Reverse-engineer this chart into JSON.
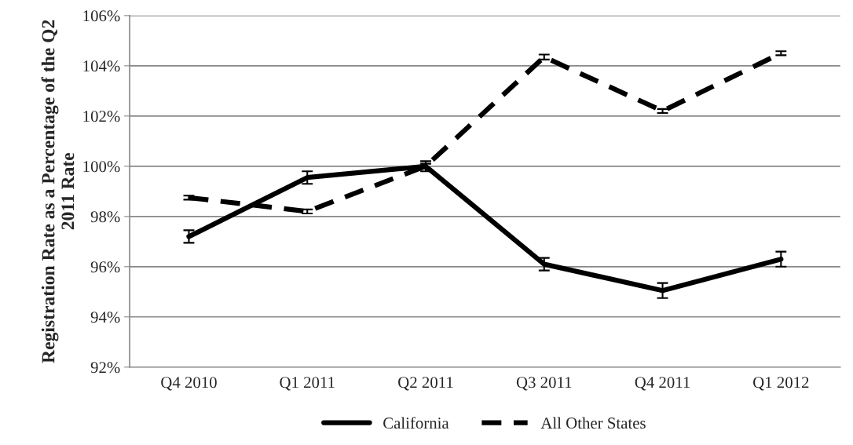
{
  "chart_data": {
    "type": "line",
    "ylabel": "Registration Rate as a Percentage of the Q2 2011 Rate",
    "categories": [
      "Q4 2010",
      "Q1 2011",
      "Q2 2011",
      "Q3 2011",
      "Q4 2011",
      "Q1 2012"
    ],
    "series": [
      {
        "name": "California",
        "color": "#000000",
        "line_style": "solid",
        "values": [
          97.2,
          99.55,
          100.0,
          96.1,
          95.05,
          96.3
        ],
        "errors": [
          0.25,
          0.25,
          0.2,
          0.25,
          0.3,
          0.3
        ]
      },
      {
        "name": "All Other States",
        "color": "#000000",
        "line_style": "dashed",
        "values": [
          98.75,
          98.2,
          100.0,
          104.35,
          102.2,
          104.5
        ],
        "errors": [
          0.08,
          0.08,
          0.1,
          0.1,
          0.08,
          0.08
        ]
      }
    ],
    "ylim": [
      92,
      106
    ],
    "yticks": [
      {
        "value": 92,
        "label": "92%"
      },
      {
        "value": 94,
        "label": "94%"
      },
      {
        "value": 96,
        "label": "96%"
      },
      {
        "value": 98,
        "label": "98%"
      },
      {
        "value": 100,
        "label": "100%"
      },
      {
        "value": 102,
        "label": "102%"
      },
      {
        "value": 104,
        "label": "104%"
      },
      {
        "value": 106,
        "label": "106%"
      }
    ],
    "grid": "y",
    "legend": "bottom",
    "marker": "none"
  }
}
